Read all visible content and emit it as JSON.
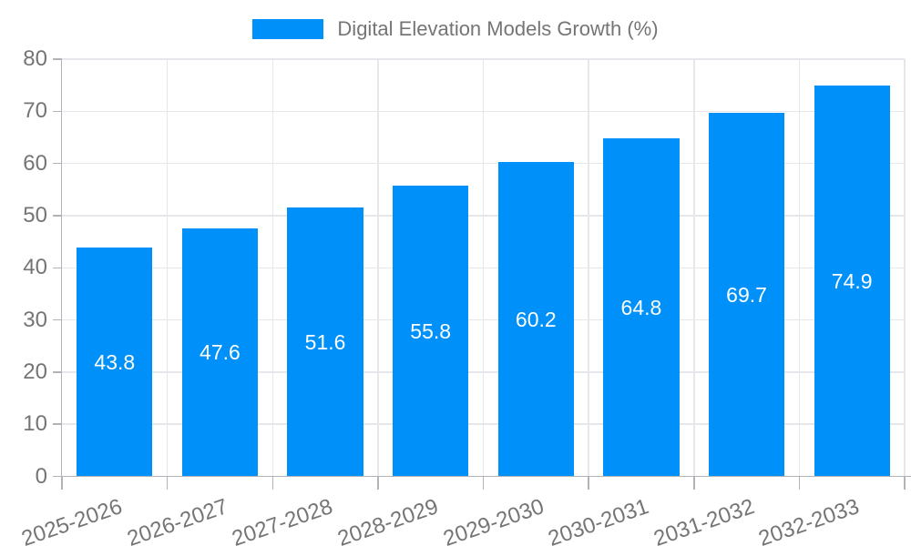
{
  "legend": {
    "label": "Digital Elevation Models Growth (%)",
    "position": "top"
  },
  "colors": {
    "bar": "#0090f9",
    "grid": "#e6e7ea",
    "axis": "#b1b3b8",
    "tick_text": "#757575",
    "value_label": "#ffffff",
    "background": "#ffffff"
  },
  "chart_data": {
    "type": "bar",
    "title": "Digital Elevation Models Growth (%)",
    "categories": [
      "2025-2026",
      "2026-2027",
      "2027-2028",
      "2028-2029",
      "2029-2030",
      "2030-2031",
      "2031-2032",
      "2032-2033"
    ],
    "values": [
      43.8,
      47.6,
      51.6,
      55.8,
      60.2,
      64.8,
      69.7,
      74.9
    ],
    "value_labels": [
      "43.8",
      "47.6",
      "51.6",
      "55.8",
      "60.2",
      "64.8",
      "69.7",
      "74.9"
    ],
    "series": [
      {
        "name": "Digital Elevation Models Growth (%)",
        "values": [
          43.8,
          47.6,
          51.6,
          55.8,
          60.2,
          64.8,
          69.7,
          74.9
        ]
      }
    ],
    "xlabel": "",
    "ylabel": "",
    "ylim": [
      0,
      80
    ],
    "yticks": [
      0,
      10,
      20,
      30,
      40,
      50,
      60,
      70,
      80
    ],
    "grid": true,
    "legend_position": "top",
    "value_label_position": "inside-center"
  }
}
